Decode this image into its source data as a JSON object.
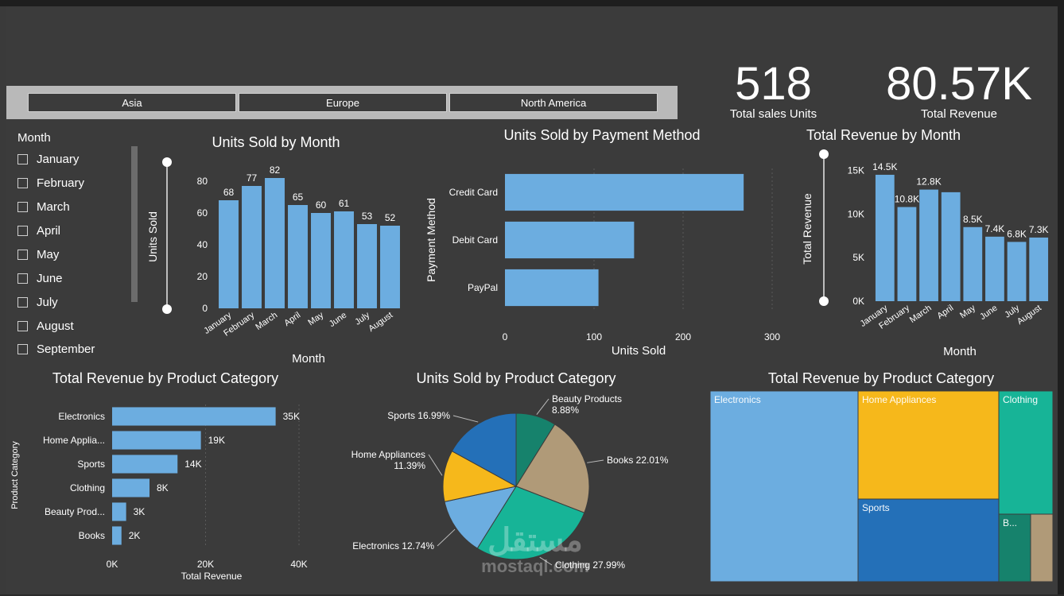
{
  "colors": {
    "background": "#3b3b3b",
    "bar": "#6cade0",
    "text": "#ffffff",
    "muted": "#cfcfcf"
  },
  "region_slicer": {
    "options": [
      "Asia",
      "Europe",
      "North America"
    ]
  },
  "kpis": [
    {
      "value": "518",
      "label": "Total sales Units"
    },
    {
      "value": "80.57K",
      "label": "Total Revenue"
    }
  ],
  "month_slicer": {
    "title": "Month",
    "items": [
      "January",
      "February",
      "March",
      "April",
      "May",
      "June",
      "July",
      "August",
      "September"
    ]
  },
  "watermark": {
    "arabic": "مستقل",
    "latin": "mostaql.com"
  },
  "chart_data": [
    {
      "type": "bar",
      "title": "Units Sold by Month",
      "xlabel": "Month",
      "ylabel": "Units Sold",
      "categories": [
        "January",
        "February",
        "March",
        "April",
        "May",
        "June",
        "July",
        "August"
      ],
      "values": [
        68,
        77,
        82,
        65,
        60,
        61,
        53,
        52
      ],
      "data_labels": [
        "68",
        "77",
        "82",
        "65",
        "60",
        "61",
        "53",
        "52"
      ],
      "ylim": [
        0,
        90
      ],
      "yticks": [
        0,
        20,
        40,
        60,
        80
      ],
      "ytick_labels": [
        "0",
        "20",
        "40",
        "60",
        "80"
      ]
    },
    {
      "type": "bar",
      "orientation": "horizontal",
      "title": "Units Sold by Payment Method",
      "xlabel": "Units Sold",
      "ylabel": "Payment Method",
      "categories": [
        "Credit Card",
        "Debit Card",
        "PayPal"
      ],
      "values": [
        268,
        145,
        105
      ],
      "xlim": [
        0,
        300
      ],
      "xticks": [
        0,
        100,
        200,
        300
      ],
      "xtick_labels": [
        "0",
        "100",
        "200",
        "300"
      ]
    },
    {
      "type": "bar",
      "title": "Total Revenue by Month",
      "xlabel": "Month",
      "ylabel": "Total Revenue",
      "categories": [
        "January",
        "February",
        "March",
        "April",
        "May",
        "June",
        "July",
        "August"
      ],
      "values": [
        14500,
        10800,
        12800,
        12500,
        8500,
        7400,
        6800,
        7300
      ],
      "data_labels": [
        "14.5K",
        "10.8K",
        "12.8K",
        "",
        "8.5K",
        "7.4K",
        "6.8K",
        "7.3K"
      ],
      "ylim": [
        0,
        16500
      ],
      "yticks": [
        0,
        5000,
        10000,
        15000
      ],
      "ytick_labels": [
        "0K",
        "5K",
        "10K",
        "15K"
      ]
    },
    {
      "type": "bar",
      "orientation": "horizontal",
      "title": "Total Revenue by Product Category",
      "xlabel": "Total Revenue",
      "ylabel": "Product Category",
      "categories": [
        "Electronics",
        "Home Applia...",
        "Sports",
        "Clothing",
        "Beauty Prod...",
        "Books"
      ],
      "values": [
        35000,
        19000,
        14000,
        8000,
        3000,
        2000
      ],
      "data_labels": [
        "35K",
        "19K",
        "14K",
        "8K",
        "3K",
        "2K"
      ],
      "xlim": [
        0,
        40000
      ],
      "xticks": [
        0,
        20000,
        40000
      ],
      "xtick_labels": [
        "0K",
        "20K",
        "40K"
      ]
    },
    {
      "type": "pie",
      "title": "Units Sold by Product Category",
      "slices": [
        {
          "name": "Beauty Products",
          "value": 8.88,
          "label": "Beauty Products",
          "pct": "8.88%",
          "color": "#16826c"
        },
        {
          "name": "Books",
          "value": 22.01,
          "label": "Books 22.01%",
          "color": "#b09a78"
        },
        {
          "name": "Clothing",
          "value": 27.99,
          "label": "Clothing 27.99%",
          "color": "#17b497"
        },
        {
          "name": "Electronics",
          "value": 12.74,
          "label": "Electronics 12.74%",
          "color": "#6cade0"
        },
        {
          "name": "Home Appliances",
          "value": 11.39,
          "label": "Home Appliances",
          "pct": "11.39%",
          "color": "#f6b81b"
        },
        {
          "name": "Sports",
          "value": 16.99,
          "label": "Sports 16.99%",
          "color": "#2470b8"
        }
      ]
    },
    {
      "type": "treemap",
      "title": "Total Revenue by Product Category",
      "items": [
        {
          "name": "Electronics",
          "label": "Electronics",
          "color": "#6cade0"
        },
        {
          "name": "Home Appliances",
          "label": "Home Appliances",
          "color": "#f6b81b"
        },
        {
          "name": "Clothing",
          "label": "Clothing",
          "color": "#17b497"
        },
        {
          "name": "Sports",
          "label": "Sports",
          "color": "#2470b8"
        },
        {
          "name": "Beauty Products",
          "label": "B...",
          "color": "#16826c"
        },
        {
          "name": "Books",
          "label": "",
          "color": "#b09a78"
        }
      ]
    }
  ]
}
